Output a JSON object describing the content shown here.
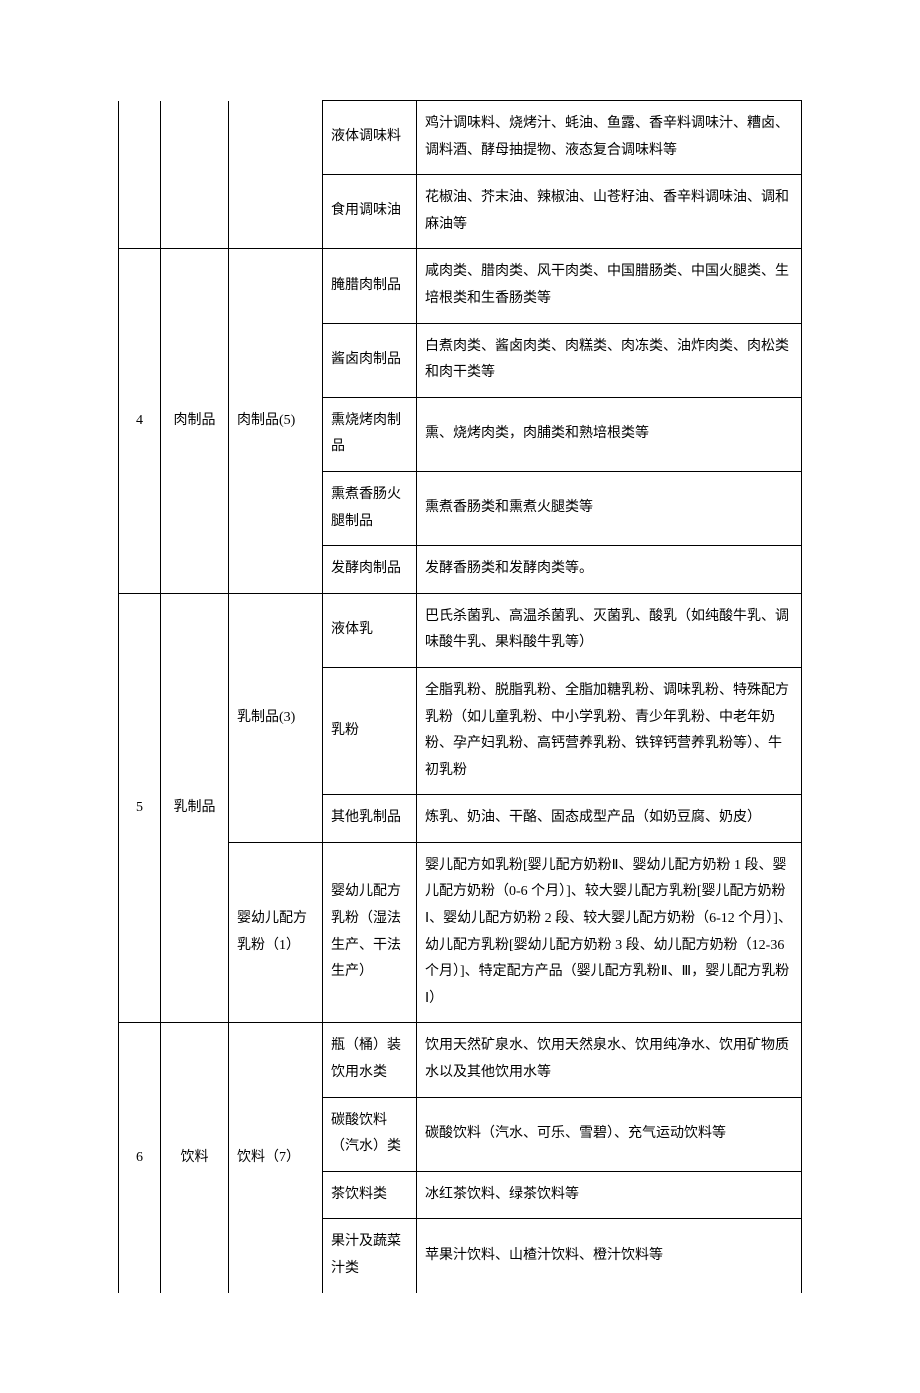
{
  "rows": [
    {
      "c1": "",
      "c2": "",
      "c3": "",
      "c4": "液体调味料",
      "c5": "鸡汁调味料、烧烤汁、蚝油、鱼露、香辛料调味汁、糟卤、调料酒、酵母抽提物、液态复合调味料等",
      "c1_open_top": true,
      "c2_open_top": true,
      "c3_open_top": true,
      "c1rs": 2,
      "c2rs": 2,
      "c3rs": 2,
      "c1_open_bottom": false,
      "c2_open_bottom": false,
      "c3_open_bottom": false
    },
    {
      "c4": "食用调味油",
      "c5": "花椒油、芥末油、辣椒油、山苍籽油、香辛料调味油、调和麻油等"
    },
    {
      "c1": "4",
      "c2": "肉制品",
      "c3": "肉制品(5)",
      "c4": "腌腊肉制品",
      "c5": "咸肉类、腊肉类、风干肉类、中国腊肠类、中国火腿类、生培根类和生香肠类等",
      "c1rs": 5,
      "c2rs": 5,
      "c3rs": 5
    },
    {
      "c4": "酱卤肉制品",
      "c5": "白煮肉类、酱卤肉类、肉糕类、肉冻类、油炸肉类、肉松类和肉干类等"
    },
    {
      "c4": "熏烧烤肉制品",
      "c5": "熏、烧烤肉类，肉脯类和熟培根类等"
    },
    {
      "c4": "熏煮香肠火腿制品",
      "c5": "熏煮香肠类和熏煮火腿类等"
    },
    {
      "c4": "发酵肉制品",
      "c5": "发酵香肠类和发酵肉类等。"
    },
    {
      "c1": "5",
      "c2": "乳制品",
      "c3": "乳制品(3)",
      "c4": "液体乳",
      "c5": "巴氏杀菌乳、高温杀菌乳、灭菌乳、酸乳（如纯酸牛乳、调味酸牛乳、果料酸牛乳等）",
      "c1rs": 4,
      "c2rs": 4,
      "c3rs": 3
    },
    {
      "c4": "乳粉",
      "c5": "全脂乳粉、脱脂乳粉、全脂加糖乳粉、调味乳粉、特殊配方乳粉（如儿童乳粉、中小学乳粉、青少年乳粉、中老年奶粉、孕产妇乳粉、高钙营养乳粉、铁锌钙营养乳粉等）、牛初乳粉"
    },
    {
      "c4": "其他乳制品",
      "c5": "炼乳、奶油、干酪、固态成型产品（如奶豆腐、奶皮）"
    },
    {
      "c3": "婴幼儿配方乳粉（1）",
      "c4": "婴幼儿配方乳粉（湿法生产、干法生产）",
      "c5": "婴儿配方如乳粉[婴儿配方奶粉Ⅱ、婴幼儿配方奶粉 1 段、婴儿配方奶粉（0-6 个月）]、较大婴儿配方乳粉[婴儿配方奶粉Ⅰ、婴幼儿配方奶粉 2 段、较大婴儿配方奶粉（6-12 个月）]、幼儿配方乳粉[婴幼儿配方奶粉 3 段、幼儿配方奶粉（12-36 个月）]、特定配方产品（婴儿配方乳粉Ⅱ、Ⅲ，婴儿配方乳粉Ⅰ）"
    },
    {
      "c1": "6",
      "c2": "饮料",
      "c3": "饮料（7）",
      "c4": "瓶（桶）装饮用水类",
      "c5": "饮用天然矿泉水、饮用天然泉水、饮用纯净水、饮用矿物质水以及其他饮用水等",
      "c1rs": 4,
      "c2rs": 4,
      "c3rs": 4,
      "c1_open_bottom": true,
      "c2_open_bottom": true,
      "c3_open_bottom": true
    },
    {
      "c4": "碳酸饮料（汽水）类",
      "c5": "碳酸饮料（汽水、可乐、雪碧）、充气运动饮料等"
    },
    {
      "c4": "茶饮料类",
      "c5": "冰红茶饮料、绿茶饮料等"
    },
    {
      "c4": "果汁及蔬菜汁类",
      "c5": "苹果汁饮料、山楂汁饮料、橙汁饮料等",
      "c4_open_bottom": true,
      "c5_open_bottom": true
    }
  ]
}
